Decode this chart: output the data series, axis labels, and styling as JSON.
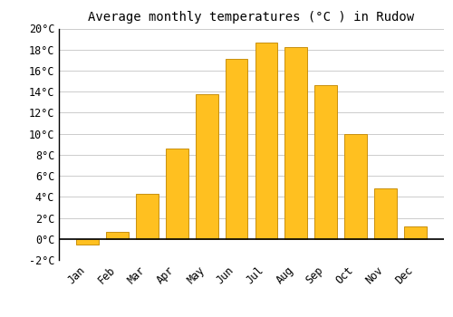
{
  "title": "Average monthly temperatures (°C ) in Rudow",
  "months": [
    "Jan",
    "Feb",
    "Mar",
    "Apr",
    "May",
    "Jun",
    "Jul",
    "Aug",
    "Sep",
    "Oct",
    "Nov",
    "Dec"
  ],
  "values": [
    -0.5,
    0.7,
    4.3,
    8.6,
    13.8,
    17.1,
    18.7,
    18.2,
    14.6,
    10.0,
    4.8,
    1.2
  ],
  "bar_color": "#FFC020",
  "bar_edge_color": "#C89010",
  "background_color": "#ffffff",
  "grid_color": "#cccccc",
  "ylim": [
    -2,
    20
  ],
  "yticks": [
    -2,
    0,
    2,
    4,
    6,
    8,
    10,
    12,
    14,
    16,
    18,
    20
  ],
  "title_fontsize": 10,
  "tick_fontsize": 8.5,
  "figsize": [
    5.0,
    3.5
  ],
  "dpi": 100
}
